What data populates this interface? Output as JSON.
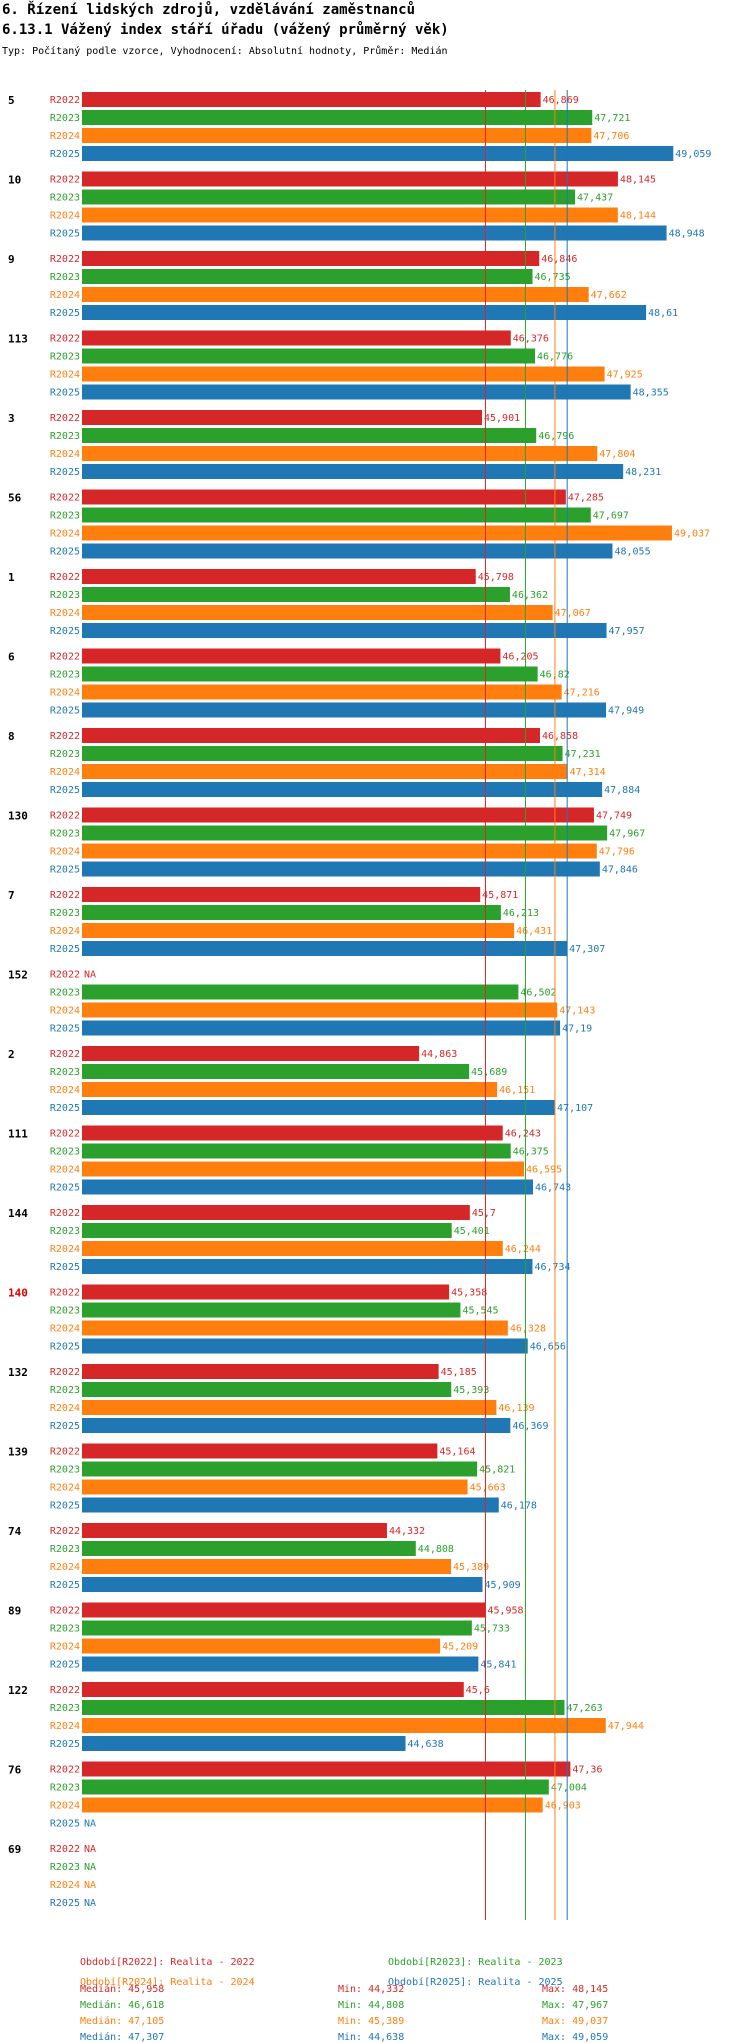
{
  "title": "6. Řízení lidských zdrojů, vzdělávání zaměstnanců",
  "subtitle_title": "6.13.1 Vážený index stáří úřadu (vážený průměrný věk)",
  "description": "Typ: Počítaný podle vzorce, Vyhodnocení: Absolutní hodnoty, Průměr: Medián",
  "colors": {
    "R2022": "#d62728",
    "R2023": "#2ca02c",
    "R2024": "#ff7f0e",
    "R2025": "#1f77b4",
    "highlight": "#e00000"
  },
  "chart_data": {
    "type": "bar",
    "orientation": "horizontal",
    "xlim": [
      39.0,
      49.5
    ],
    "series_names": [
      "R2022",
      "R2023",
      "R2024",
      "R2025"
    ],
    "groups": [
      {
        "id": "5",
        "values": [
          "46,869",
          "47,721",
          "47,706",
          "49,059"
        ]
      },
      {
        "id": "10",
        "values": [
          "48,145",
          "47,437",
          "48,144",
          "48,948"
        ]
      },
      {
        "id": "9",
        "values": [
          "46,846",
          "46,735",
          "47,662",
          "48,61"
        ]
      },
      {
        "id": "113",
        "values": [
          "46,376",
          "46,776",
          "47,925",
          "48,355"
        ]
      },
      {
        "id": "3",
        "values": [
          "45,901",
          "46,796",
          "47,804",
          "48,231"
        ]
      },
      {
        "id": "56",
        "values": [
          "47,285",
          "47,697",
          "49,037",
          "48,055"
        ]
      },
      {
        "id": "1",
        "values": [
          "45,798",
          "46,362",
          "47,067",
          "47,957"
        ]
      },
      {
        "id": "6",
        "values": [
          "46,205",
          "46,82",
          "47,216",
          "47,949"
        ]
      },
      {
        "id": "8",
        "values": [
          "46,858",
          "47,231",
          "47,314",
          "47,884"
        ]
      },
      {
        "id": "130",
        "values": [
          "47,749",
          "47,967",
          "47,796",
          "47,846"
        ]
      },
      {
        "id": "7",
        "values": [
          "45,871",
          "46,213",
          "46,431",
          "47,307"
        ]
      },
      {
        "id": "152",
        "values": [
          "NA",
          "46,502",
          "47,143",
          "47,19"
        ]
      },
      {
        "id": "2",
        "values": [
          "44,863",
          "45,689",
          "46,151",
          "47,107"
        ]
      },
      {
        "id": "111",
        "values": [
          "46,243",
          "46,375",
          "46,595",
          "46,743"
        ]
      },
      {
        "id": "144",
        "values": [
          "45,7",
          "45,401",
          "46,244",
          "46,734"
        ]
      },
      {
        "id": "140",
        "highlight": true,
        "values": [
          "45,358",
          "45,545",
          "46,328",
          "46,656"
        ]
      },
      {
        "id": "132",
        "values": [
          "45,185",
          "45,393",
          "46,139",
          "46,369"
        ]
      },
      {
        "id": "139",
        "values": [
          "45,164",
          "45,821",
          "45,663",
          "46,178"
        ]
      },
      {
        "id": "74",
        "values": [
          "44,332",
          "44,808",
          "45,389",
          "45,909"
        ]
      },
      {
        "id": "89",
        "values": [
          "45,958",
          "45,733",
          "45,209",
          "45,841"
        ]
      },
      {
        "id": "122",
        "values": [
          "45,6",
          "47,263",
          "47,944",
          "44,638"
        ]
      },
      {
        "id": "76",
        "values": [
          "47,36",
          "47,004",
          "46,903",
          "NA"
        ]
      },
      {
        "id": "69",
        "values": [
          "NA",
          "NA",
          "NA",
          "NA"
        ]
      }
    ],
    "median_lines": [
      45.958,
      46.618,
      47.105,
      47.307
    ]
  },
  "legend": [
    "Období[R2022]: Realita - 2022",
    "Období[R2023]: Realita - 2023",
    "Období[R2024]: Realita - 2024",
    "Období[R2025]: Realita - 2025"
  ],
  "stats": [
    {
      "median": "Medián: 45,958",
      "min": "Min: 44,332",
      "max": "Max: 48,145"
    },
    {
      "median": "Medián: 46,618",
      "min": "Min: 44,808",
      "max": "Max: 47,967"
    },
    {
      "median": "Medián: 47,105",
      "min": "Min: 45,389",
      "max": "Max: 49,037"
    },
    {
      "median": "Medián: 47,307",
      "min": "Min: 44,638",
      "max": "Max: 49,059"
    }
  ]
}
